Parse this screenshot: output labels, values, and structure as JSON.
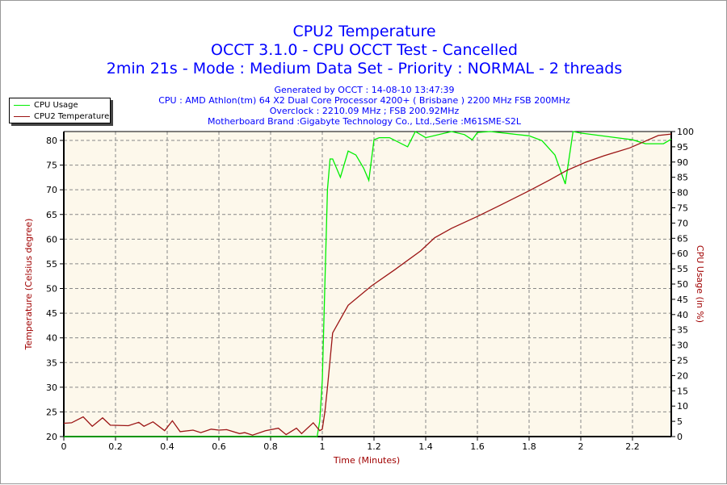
{
  "header": {
    "title": "CPU2 Temperature",
    "subtitle": "OCCT 3.1.0 - CPU OCCT Test - Cancelled",
    "details": "2min 21s - Mode : Medium Data Set - Priority : NORMAL - 2 threads",
    "generated": "Generated by OCCT : 14-08-10 13:47:39",
    "cpu": "CPU : AMD Athlon(tm) 64 X2 Dual Core Processor 4200+ ( Brisbane ) 2200 MHz FSB 200MHz",
    "overclock": "Overclock : 2210.09 MHz ; FSB 200.92MHz",
    "motherboard": "Motherboard Brand :Gigabyte Technology Co., Ltd.,Serie :M61SME-S2L"
  },
  "colors": {
    "title": "#0000ff",
    "axis_label": "#a00000",
    "plot_bg": "#fdf8eb",
    "usage": "#00ee00",
    "temp": "#9b1414"
  },
  "chart_data": {
    "type": "line",
    "xlabel": "Time (Minutes)",
    "ylabel": "Temperature (Celsius degree)",
    "y2label": "CPU Usage (in %)",
    "xlim": [
      0,
      2.35
    ],
    "ylim": [
      20,
      81.8
    ],
    "y2lim": [
      0,
      100
    ],
    "grid": true,
    "legend_position": "top-left",
    "x_ticks": [
      "0",
      "0.2",
      "0.4",
      "0.6",
      "0.8",
      "1",
      "1.2",
      "1.4",
      "1.6",
      "1.8",
      "2",
      "2.2"
    ],
    "y_ticks": [
      "20",
      "25",
      "30",
      "35",
      "40",
      "45",
      "50",
      "55",
      "60",
      "65",
      "70",
      "75",
      "80"
    ],
    "y2_ticks": [
      "0",
      "5",
      "10",
      "15",
      "20",
      "25",
      "30",
      "35",
      "40",
      "45",
      "50",
      "55",
      "60",
      "65",
      "70",
      "75",
      "80",
      "85",
      "90",
      "95",
      "100"
    ],
    "series": [
      {
        "name": "CPU Usage",
        "axis": "right",
        "x": [
          0,
          0.98,
          0.99,
          1.0,
          1.01,
          1.02,
          1.03,
          1.04,
          1.07,
          1.1,
          1.13,
          1.16,
          1.18,
          1.2,
          1.22,
          1.26,
          1.33,
          1.36,
          1.4,
          1.5,
          1.55,
          1.58,
          1.6,
          1.65,
          1.8,
          1.85,
          1.9,
          1.94,
          1.97,
          2.0,
          2.2,
          2.25,
          2.32,
          2.35
        ],
        "values": [
          0,
          0,
          5,
          18.5,
          50,
          81,
          91,
          91,
          85,
          93.6,
          92.3,
          88,
          84,
          97.3,
          98,
          98,
          95,
          100,
          98,
          100,
          99,
          97.3,
          99.7,
          100,
          98.6,
          97,
          92.3,
          82.8,
          100,
          99.5,
          97.3,
          96,
          96,
          97.5
        ]
      },
      {
        "name": "CPU2 Temperature",
        "axis": "left",
        "x": [
          0,
          0.03,
          0.075,
          0.11,
          0.15,
          0.18,
          0.25,
          0.29,
          0.31,
          0.345,
          0.39,
          0.42,
          0.45,
          0.5,
          0.53,
          0.57,
          0.6,
          0.63,
          0.68,
          0.7,
          0.73,
          0.78,
          0.83,
          0.86,
          0.9,
          0.92,
          0.965,
          0.99,
          1.0,
          1.01,
          1.02,
          1.04,
          1.1,
          1.19,
          1.28,
          1.38,
          1.435,
          1.5,
          1.6,
          1.69,
          1.8,
          1.88,
          1.945,
          2.02,
          2.09,
          2.19,
          2.3,
          2.35
        ],
        "values": [
          22.7,
          22.8,
          24,
          22.1,
          23.8,
          22.3,
          22.2,
          22.9,
          22.1,
          23,
          21.2,
          23.2,
          21,
          21.3,
          20.8,
          21.5,
          21.3,
          21.4,
          20.6,
          20.8,
          20.3,
          21.2,
          21.7,
          20.4,
          21.7,
          20.6,
          22.8,
          21.2,
          21.5,
          25,
          30,
          41,
          46.6,
          50.5,
          53.8,
          57.6,
          60.3,
          62.2,
          64.6,
          66.9,
          69.8,
          72,
          73.9,
          75.6,
          76.9,
          78.5,
          81,
          81.3
        ]
      }
    ]
  }
}
